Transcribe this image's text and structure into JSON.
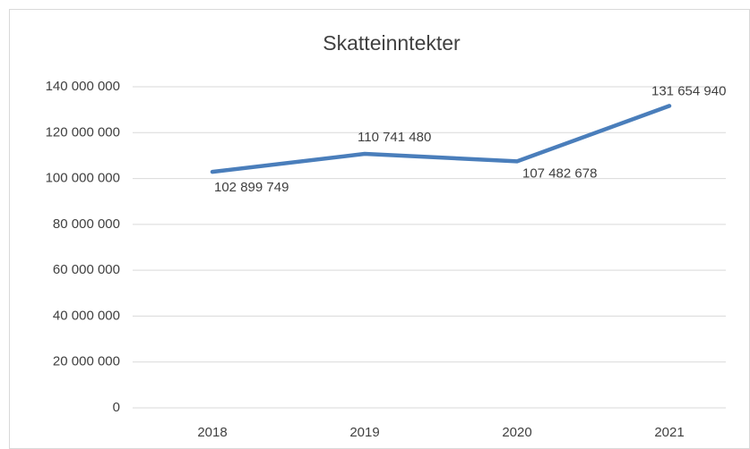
{
  "chart_data": {
    "type": "line",
    "title": "Skatteinntekter",
    "categories": [
      "2018",
      "2019",
      "2020",
      "2021"
    ],
    "values": [
      102899749,
      110741480,
      107482678,
      131654940
    ],
    "value_labels": [
      "102 899 749",
      "110 741 480",
      "107 482 678",
      "131 654 940"
    ],
    "color": "#4a7ebb",
    "ylim": [
      0,
      140000000
    ],
    "yticks": [
      0,
      {
        "value": 20000000,
        "label": "20 000 000"
      },
      {
        "value": 40000000,
        "label": "40 000 000"
      },
      {
        "value": 60000000,
        "label": "60 000 000"
      },
      {
        "value": 80000000,
        "label": "80 000 000"
      },
      {
        "value": 100000000,
        "label": "100 000 000"
      },
      {
        "value": 120000000,
        "label": "120 000 000"
      },
      {
        "value": 140000000,
        "label": "140 000 000"
      }
    ],
    "grid": true
  }
}
